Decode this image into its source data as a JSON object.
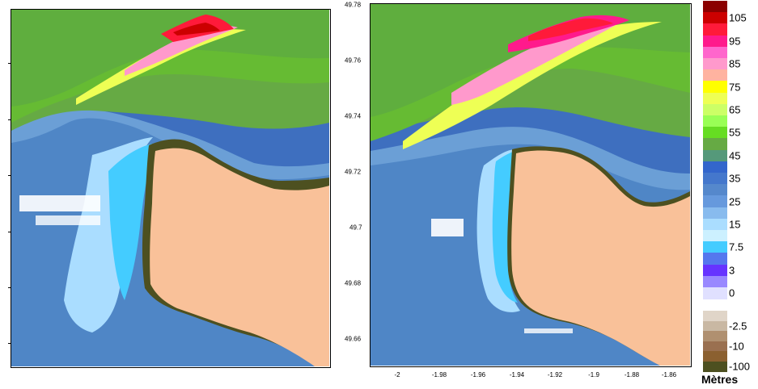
{
  "map_right": {
    "y_ticks": [
      "49.78",
      "49.76",
      "49.74",
      "49.72",
      "49.7",
      "49.68",
      "49.66"
    ],
    "x_ticks": [
      "-2",
      "-1.98",
      "-1.96",
      "-1.94",
      "-1.92",
      "-1.9",
      "-1.88",
      "-1.86"
    ]
  },
  "legend": {
    "unit": "Mètres",
    "positive": [
      {
        "color": "#8b0000"
      },
      {
        "color": "#cc0000",
        "label": "105"
      },
      {
        "color": "#ff1a3a"
      },
      {
        "color": "#ff1a8c",
        "label": "95"
      },
      {
        "color": "#ff66cc"
      },
      {
        "color": "#ff99cc",
        "label": "85"
      },
      {
        "color": "#ffb3a0"
      },
      {
        "color": "#ffff00",
        "label": "75"
      },
      {
        "color": "#eeff55"
      },
      {
        "color": "#ccff66",
        "label": "65"
      },
      {
        "color": "#99ff55"
      },
      {
        "color": "#66dd22",
        "label": "55"
      },
      {
        "color": "#66aa44"
      },
      {
        "color": "#55997a",
        "label": "45"
      },
      {
        "color": "#3366cc"
      },
      {
        "color": "#4477cc",
        "label": "35"
      },
      {
        "color": "#5588cc"
      },
      {
        "color": "#6699dd",
        "label": "25"
      },
      {
        "color": "#88bbee"
      },
      {
        "color": "#aaddff",
        "label": "15"
      },
      {
        "color": "#ccf0ff"
      },
      {
        "color": "#44ccff",
        "label": "7.5"
      },
      {
        "color": "#5577ee"
      },
      {
        "color": "#6633ff",
        "label": "3"
      },
      {
        "color": "#9988ff"
      },
      {
        "color": "#e0e0ff",
        "label": "0"
      }
    ],
    "negative": [
      {
        "color": "#e0d5c8"
      },
      {
        "color": "#c9b8a3",
        "label": "-2.5"
      },
      {
        "color": "#b09070"
      },
      {
        "color": "#9a7050",
        "label": "-10"
      },
      {
        "color": "#8b6030"
      },
      {
        "color": "#4d5020",
        "label": "-100"
      }
    ]
  }
}
